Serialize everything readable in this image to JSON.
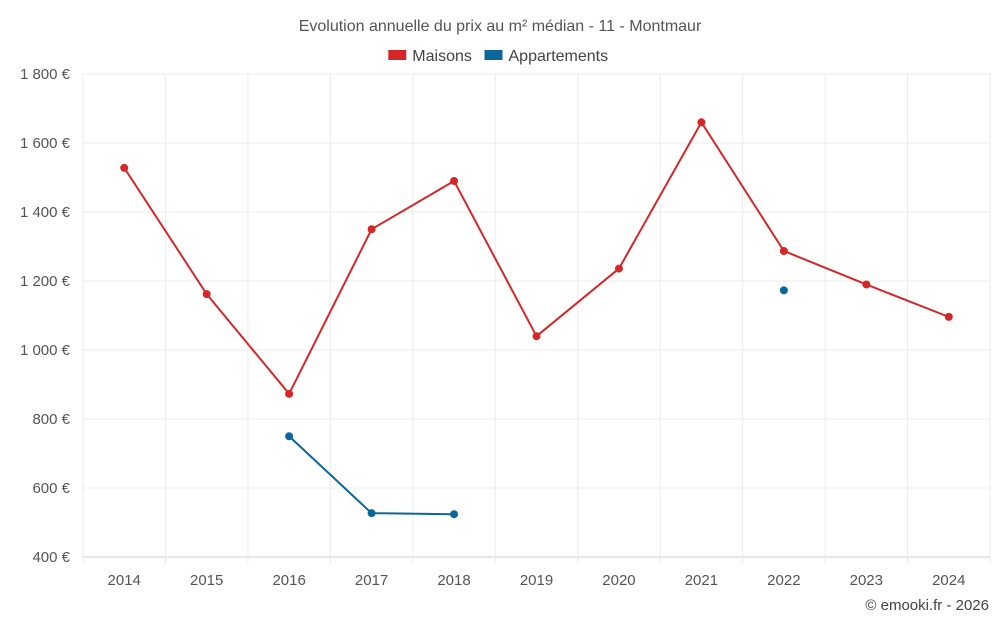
{
  "chart_data": {
    "type": "line",
    "title": "Evolution annuelle du prix au m² médian - 11 - Montmaur",
    "categories": [
      "2014",
      "2015",
      "2016",
      "2017",
      "2018",
      "2019",
      "2020",
      "2021",
      "2022",
      "2023",
      "2024"
    ],
    "series": [
      {
        "name": "Maisons",
        "color": "#d62728",
        "values": [
          1528,
          1162,
          873,
          1350,
          1490,
          1040,
          1236,
          1660,
          1287,
          1190,
          1096
        ]
      },
      {
        "name": "Appartements",
        "color": "#0b6699",
        "values": [
          null,
          null,
          750,
          527,
          524,
          null,
          null,
          null,
          1173,
          null,
          null
        ]
      }
    ],
    "ylim": [
      400,
      1800
    ],
    "yticks": [
      {
        "value": 400,
        "label": "400 €"
      },
      {
        "value": 600,
        "label": "600 €"
      },
      {
        "value": 800,
        "label": "800 €"
      },
      {
        "value": 1000,
        "label": "1 000 €"
      },
      {
        "value": 1200,
        "label": "1 200 €"
      },
      {
        "value": 1400,
        "label": "1 400 €"
      },
      {
        "value": 1600,
        "label": "1 600 €"
      },
      {
        "value": 1800,
        "label": "1 800 €"
      }
    ],
    "xlabel": "",
    "ylabel": "",
    "legend_position": "top-center",
    "grid": true
  },
  "credit": "© emooki.fr - 2026"
}
